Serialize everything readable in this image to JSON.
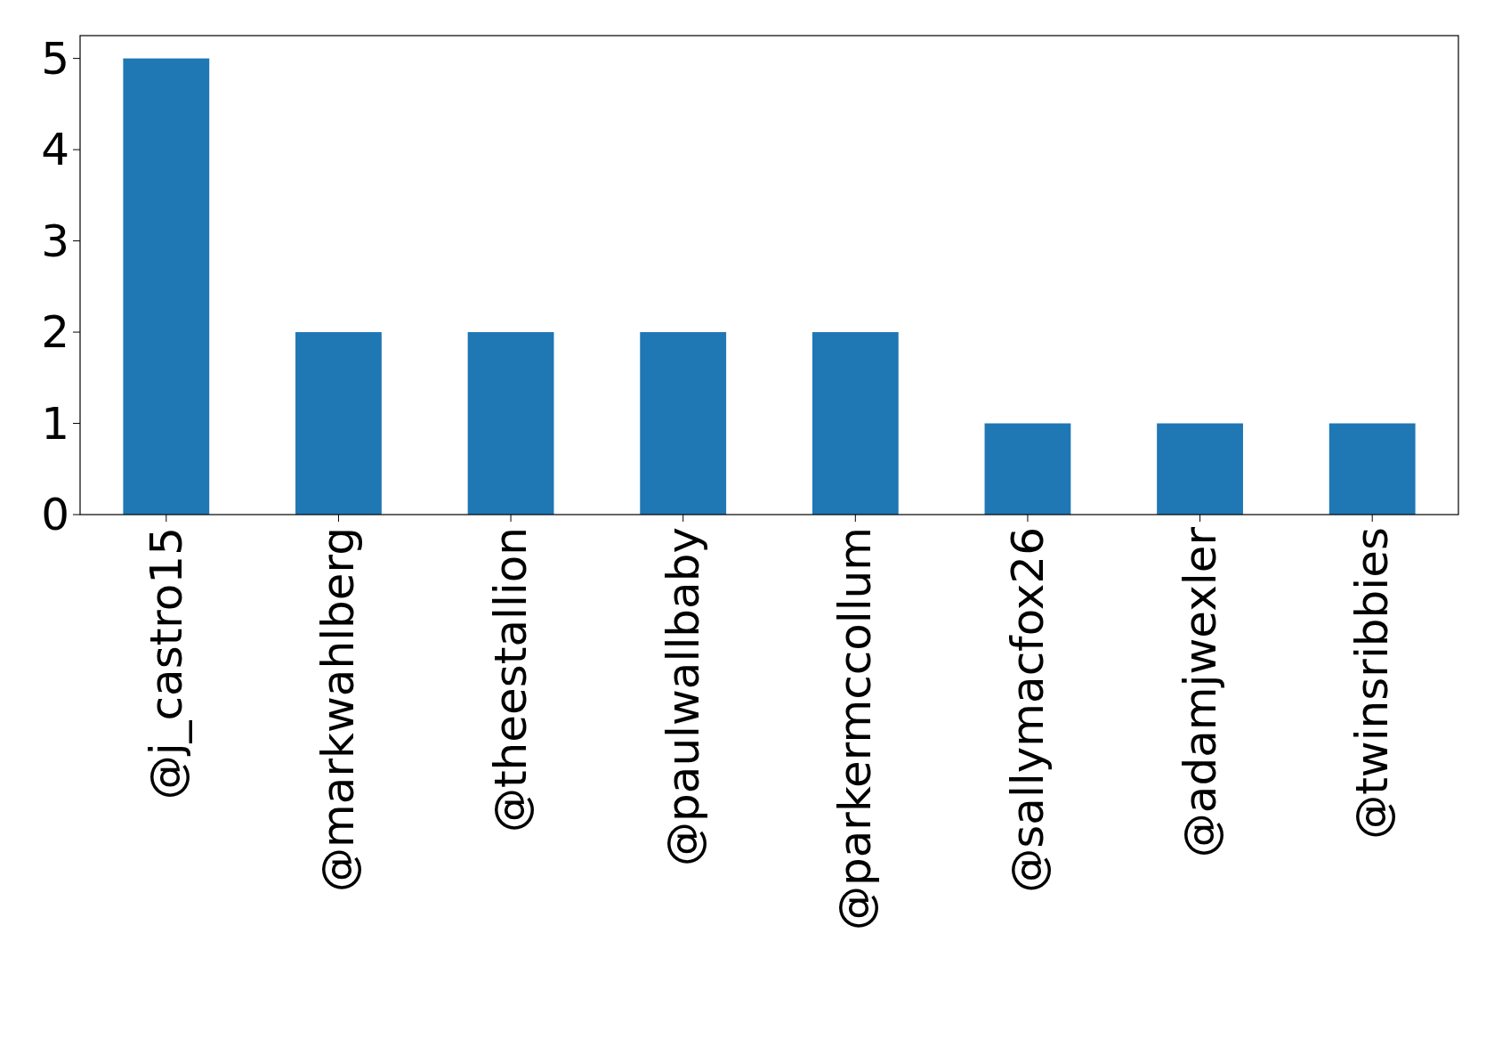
{
  "chart_data": {
    "type": "bar",
    "categories": [
      "@j_castro15",
      "@markwahlberg",
      "@theestallion",
      "@paulwallbaby",
      "@parkermccollum",
      "@sallymacfox26",
      "@adamjwexler",
      "@twinsribbies"
    ],
    "values": [
      5,
      2,
      2,
      2,
      2,
      1,
      1,
      1
    ],
    "color": "#1f77b4",
    "ylim": [
      0,
      5.25
    ],
    "yticks": [
      0,
      1,
      2,
      3,
      4,
      5
    ]
  }
}
